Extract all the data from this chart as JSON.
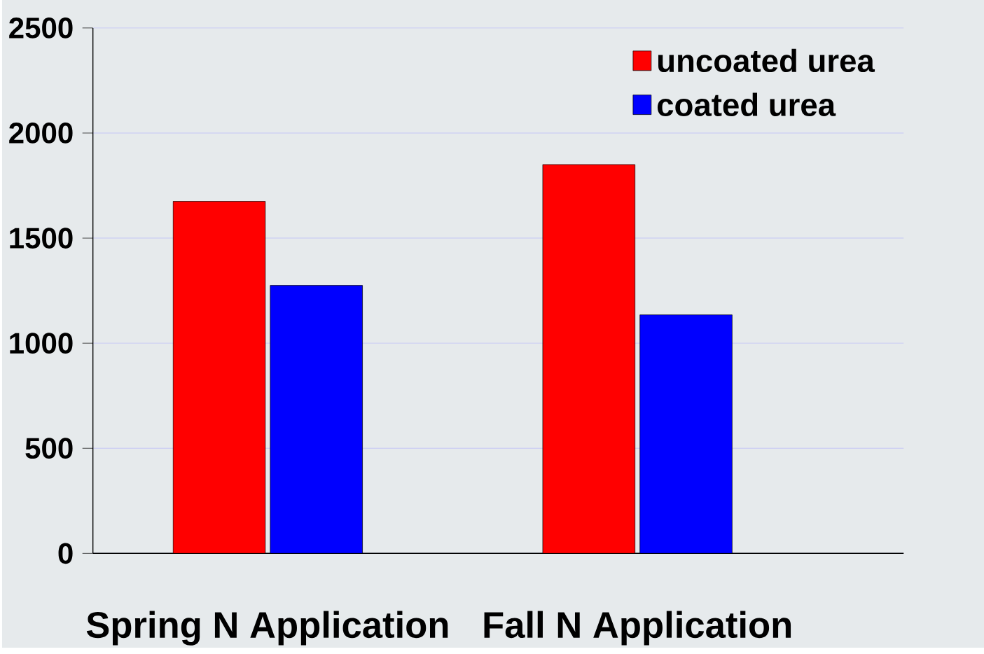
{
  "chart_data": {
    "type": "bar",
    "categories": [
      "Spring  N Application",
      "Fall N Application"
    ],
    "series": [
      {
        "name": "uncoated urea",
        "color": "#ff0000",
        "values": [
          1675,
          1850
        ]
      },
      {
        "name": "coated urea",
        "color": "#0000ff",
        "values": [
          1275,
          1135
        ]
      }
    ],
    "ylim": [
      0,
      2500
    ],
    "yticks": [
      0,
      500,
      1000,
      1500,
      2000,
      2500
    ],
    "grid": "y",
    "legend": "top right"
  }
}
